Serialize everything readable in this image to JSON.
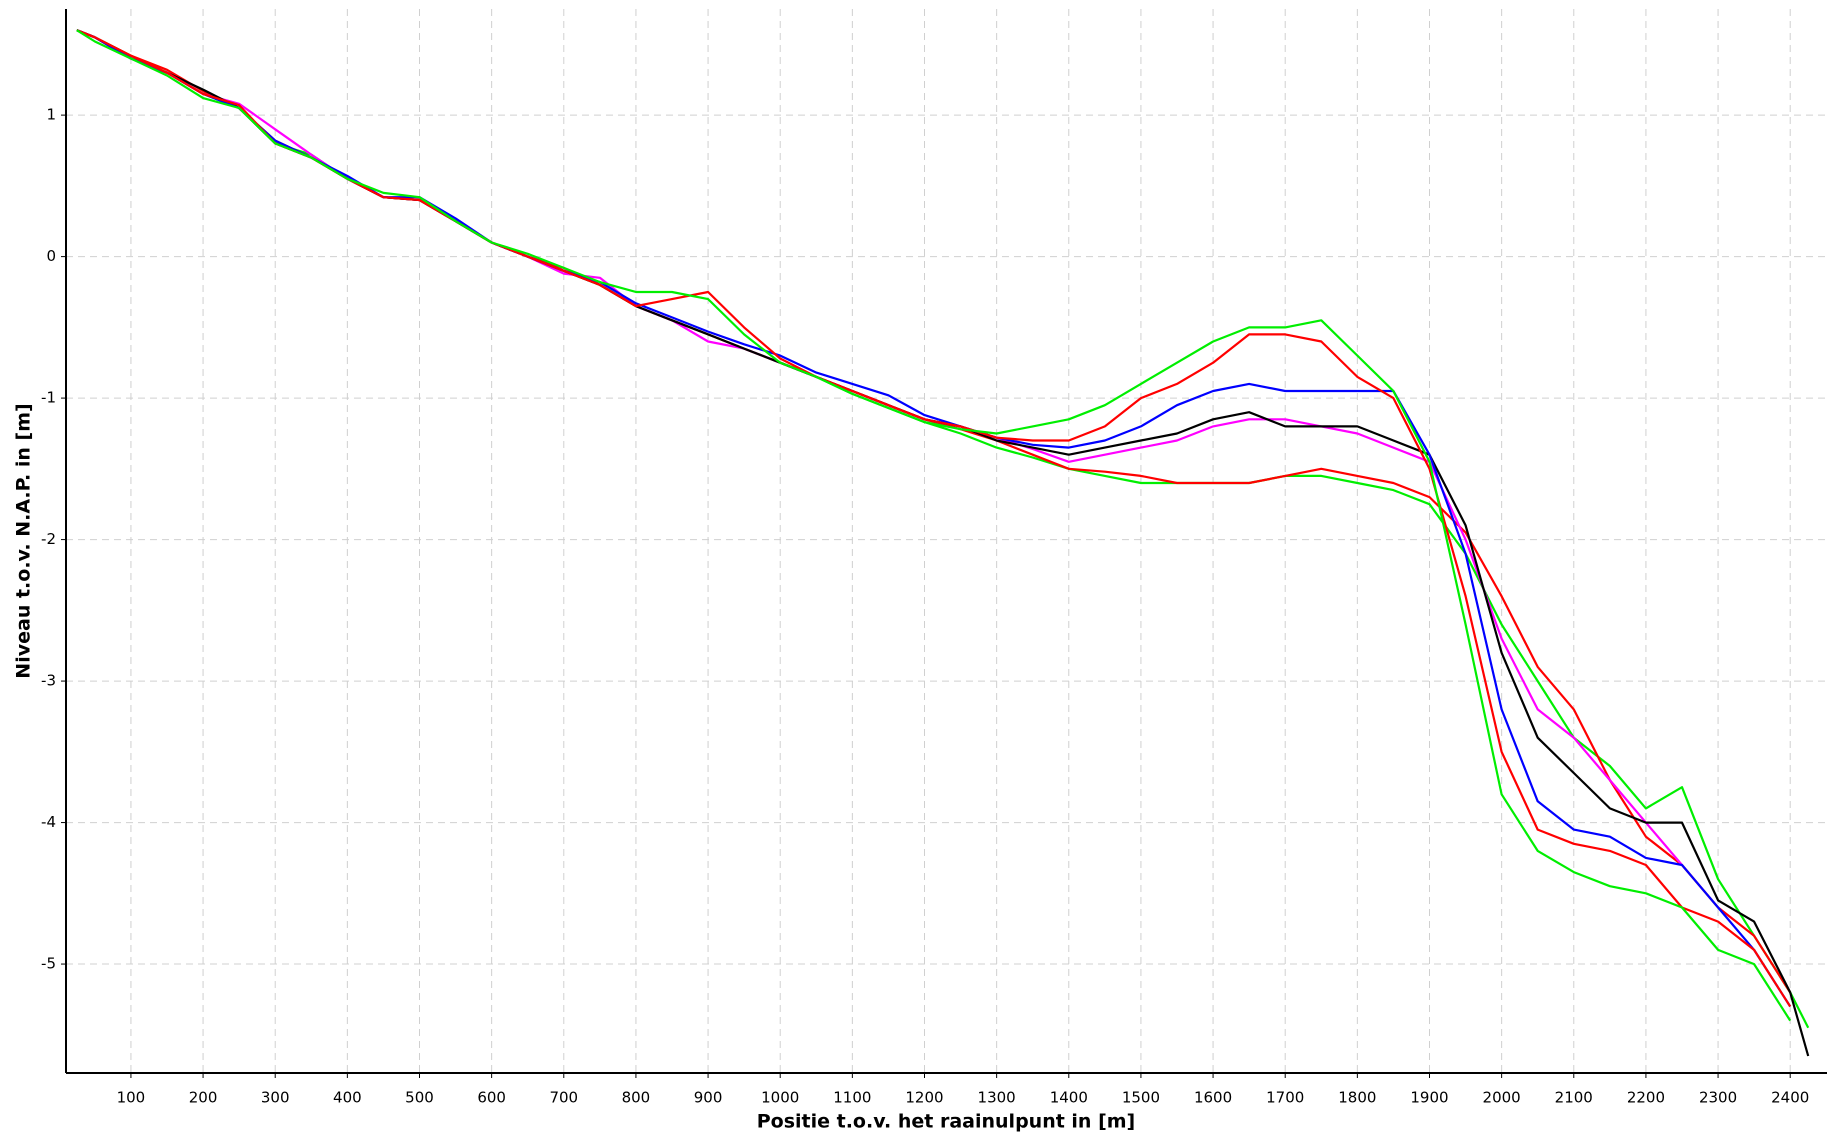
{
  "chart_data": {
    "type": "line",
    "xlabel": "Positie t.o.v. het raainulpunt in [m]",
    "ylabel": "Niveau t.o.v. N.A.P. in [m]",
    "x": [
      25,
      50,
      100,
      150,
      200,
      250,
      300,
      350,
      400,
      450,
      500,
      550,
      600,
      650,
      700,
      750,
      800,
      850,
      900,
      950,
      1000,
      1050,
      1100,
      1150,
      1200,
      1250,
      1300,
      1350,
      1400,
      1450,
      1500,
      1550,
      1600,
      1650,
      1700,
      1750,
      1800,
      1850,
      1900,
      1950,
      2000,
      2050,
      2100,
      2150,
      2200,
      2250,
      2300,
      2350,
      2400,
      2425
    ],
    "xlim": [
      10,
      2451
    ],
    "ylim": [
      -5.77,
      1.75
    ],
    "xticks": [
      100,
      200,
      300,
      400,
      500,
      600,
      700,
      800,
      900,
      1000,
      1100,
      1200,
      1300,
      1400,
      1500,
      1600,
      1700,
      1800,
      1900,
      2000,
      2100,
      2200,
      2300,
      2400
    ],
    "yticks": [
      1,
      0,
      -1,
      -2,
      -3,
      -4,
      -5
    ],
    "grid": true,
    "series": [
      {
        "color": "#00ee00",
        "values": [
          1.6,
          1.55,
          1.42,
          1.3,
          1.15,
          1.05,
          0.8,
          0.72,
          0.55,
          0.42,
          0.4,
          0.25,
          0.1,
          0.0,
          -0.1,
          -0.2,
          -0.35,
          -0.45,
          -0.55,
          -0.65,
          -0.75,
          -0.85,
          -0.97,
          -1.07,
          -1.17,
          -1.25,
          -1.35,
          -1.42,
          -1.5,
          -1.55,
          -1.6,
          -1.6,
          -1.6,
          -1.6,
          -1.55,
          -1.55,
          -1.6,
          -1.65,
          -1.75,
          -2.1,
          -2.6,
          -3.0,
          -3.4,
          -3.6,
          -3.9,
          -3.75,
          -4.4,
          -4.8,
          -5.2,
          -5.45
        ]
      },
      {
        "color": "#ff0000",
        "values": [
          1.6,
          1.55,
          1.42,
          1.32,
          1.17,
          1.05,
          0.82,
          0.7,
          0.55,
          0.42,
          0.4,
          0.25,
          0.1,
          0.0,
          -0.08,
          -0.2,
          -0.35,
          -0.45,
          -0.55,
          -0.65,
          -0.75,
          -0.85,
          -0.95,
          -1.05,
          -1.15,
          -1.22,
          -1.3,
          -1.4,
          -1.5,
          -1.52,
          -1.55,
          -1.6,
          -1.6,
          -1.6,
          -1.55,
          -1.5,
          -1.55,
          -1.6,
          -1.7,
          -1.95,
          -2.4,
          -2.9,
          -3.2,
          -3.7,
          -4.1,
          -4.3,
          -4.6,
          -4.8,
          -5.2,
          null
        ]
      },
      {
        "color": "#ff00ff",
        "values": [
          1.6,
          1.55,
          1.4,
          1.3,
          1.15,
          1.08,
          0.9,
          0.72,
          0.55,
          0.42,
          0.4,
          0.25,
          0.1,
          0.0,
          -0.12,
          -0.15,
          -0.35,
          -0.45,
          -0.6,
          -0.65,
          -0.75,
          -0.85,
          -0.95,
          -1.05,
          -1.15,
          -1.2,
          -1.28,
          -1.36,
          -1.45,
          -1.4,
          -1.35,
          -1.3,
          -1.2,
          -1.15,
          -1.15,
          -1.2,
          -1.25,
          -1.35,
          -1.45,
          -2.0,
          -2.7,
          -3.2,
          -3.4,
          -3.7,
          -4.0,
          -4.3,
          null,
          null,
          null,
          null
        ]
      },
      {
        "color": "#000000",
        "values": [
          1.6,
          1.55,
          1.4,
          1.3,
          1.18,
          1.05,
          0.8,
          0.7,
          0.55,
          0.42,
          0.4,
          0.25,
          0.1,
          0.0,
          -0.1,
          -0.2,
          -0.35,
          -0.45,
          -0.55,
          -0.65,
          -0.75,
          -0.85,
          -0.95,
          -1.05,
          -1.15,
          -1.2,
          -1.3,
          -1.35,
          -1.4,
          -1.35,
          -1.3,
          -1.25,
          -1.15,
          -1.1,
          -1.2,
          -1.2,
          -1.2,
          -1.3,
          -1.4,
          -1.9,
          -2.8,
          -3.4,
          -3.65,
          -3.9,
          -4.0,
          -4.0,
          -4.55,
          -4.7,
          -5.2,
          -5.65
        ]
      },
      {
        "color": "#0000ff",
        "values": [
          1.6,
          1.55,
          1.4,
          1.3,
          1.15,
          1.05,
          0.82,
          0.7,
          0.57,
          0.42,
          0.42,
          0.27,
          0.1,
          0.0,
          -0.1,
          -0.18,
          -0.33,
          -0.43,
          -0.53,
          -0.62,
          -0.7,
          -0.82,
          -0.9,
          -0.98,
          -1.12,
          -1.2,
          -1.28,
          -1.33,
          -1.35,
          -1.3,
          -1.2,
          -1.05,
          -0.95,
          -0.9,
          -0.95,
          -0.95,
          -0.95,
          -0.95,
          -1.4,
          -2.1,
          -3.2,
          -3.85,
          -4.05,
          -4.1,
          -4.25,
          -4.3,
          -4.6,
          -4.9,
          -5.3,
          null
        ]
      },
      {
        "color": "#ff0000",
        "values": [
          1.6,
          1.55,
          1.42,
          1.3,
          1.15,
          1.07,
          0.8,
          0.7,
          0.55,
          0.42,
          0.4,
          0.25,
          0.1,
          0.0,
          -0.1,
          -0.2,
          -0.35,
          -0.3,
          -0.25,
          -0.5,
          -0.72,
          -0.85,
          -0.95,
          -1.05,
          -1.15,
          -1.2,
          -1.28,
          -1.3,
          -1.3,
          -1.2,
          -1.0,
          -0.9,
          -0.75,
          -0.55,
          -0.55,
          -0.6,
          -0.85,
          -1.0,
          -1.5,
          -2.4,
          -3.5,
          -4.05,
          -4.15,
          -4.2,
          -4.3,
          -4.6,
          -4.7,
          -4.9,
          -5.3,
          null
        ]
      },
      {
        "color": "#00ee00",
        "values": [
          1.6,
          1.52,
          1.4,
          1.28,
          1.12,
          1.05,
          0.8,
          0.7,
          0.55,
          0.45,
          0.42,
          0.25,
          0.1,
          0.02,
          -0.08,
          -0.18,
          -0.25,
          -0.25,
          -0.3,
          -0.55,
          -0.75,
          -0.85,
          -0.97,
          -1.07,
          -1.17,
          -1.22,
          -1.25,
          -1.2,
          -1.15,
          -1.05,
          -0.9,
          -0.75,
          -0.6,
          -0.5,
          -0.5,
          -0.45,
          -0.7,
          -0.95,
          -1.45,
          -2.6,
          -3.8,
          -4.2,
          -4.35,
          -4.45,
          -4.5,
          -4.6,
          -4.9,
          -5.0,
          -5.4,
          null
        ]
      }
    ]
  }
}
